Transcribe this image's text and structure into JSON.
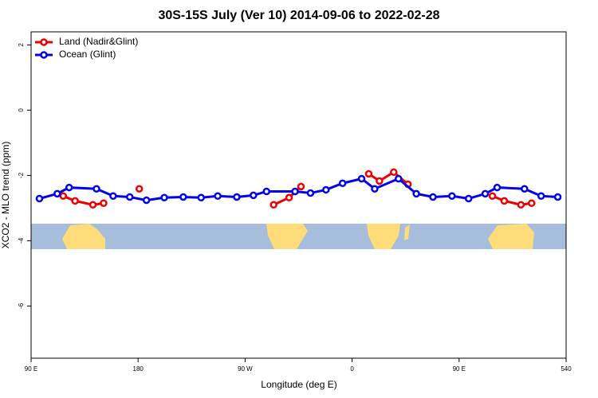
{
  "chart_data": {
    "type": "line",
    "title": "30S-15S July (Ver 10)   2014-09-06 to 2022-02-28",
    "x_label": "Longitude (deg E)",
    "y_label": "XCO2 - MLO trend (ppm)",
    "xlim": [
      90,
      540
    ],
    "xticks": [
      {
        "value": 90,
        "label": "90 E"
      },
      180,
      {
        "value": 270,
        "label": "90 W"
      },
      {
        "value": 360,
        "label": "0"
      },
      {
        "value": 450,
        "label": "90 E"
      },
      540
    ],
    "ylim": [
      -7.6,
      2.4
    ],
    "yticks": [
      2,
      0,
      -2,
      -4,
      -6
    ],
    "legend_position": "top-left",
    "series": [
      {
        "name": "Land (Nadir&Glint)",
        "color": "#ee0000",
        "x": [
          117,
          127,
          142,
          151,
          null,
          181,
          null,
          294,
          307,
          317,
          null,
          374,
          383,
          395,
          407,
          null,
          478,
          488,
          502,
          511
        ],
        "values": [
          -2.63,
          -2.78,
          -2.9,
          -2.85,
          null,
          -2.41,
          null,
          -2.9,
          -2.68,
          -2.34,
          null,
          -1.95,
          -2.17,
          -1.9,
          -2.27,
          null,
          -2.63,
          -2.78,
          -2.9,
          -2.85
        ]
      },
      {
        "name": "Ocean (Glint)",
        "color": "#0000ee",
        "x": [
          97,
          112,
          122,
          145,
          159,
          173,
          187,
          202,
          218,
          233,
          247,
          263,
          277,
          288,
          312,
          325,
          338,
          352,
          368,
          379,
          399,
          414,
          428,
          444,
          458,
          472,
          482,
          505,
          519,
          533
        ],
        "values": [
          -2.71,
          -2.56,
          -2.37,
          -2.41,
          -2.63,
          -2.66,
          -2.76,
          -2.68,
          -2.66,
          -2.68,
          -2.63,
          -2.66,
          -2.61,
          -2.49,
          -2.49,
          -2.54,
          -2.44,
          -2.24,
          -2.1,
          -2.41,
          -2.1,
          -2.56,
          -2.66,
          -2.63,
          -2.71,
          -2.56,
          -2.37,
          -2.41,
          -2.63,
          -2.66
        ]
      }
    ]
  }
}
